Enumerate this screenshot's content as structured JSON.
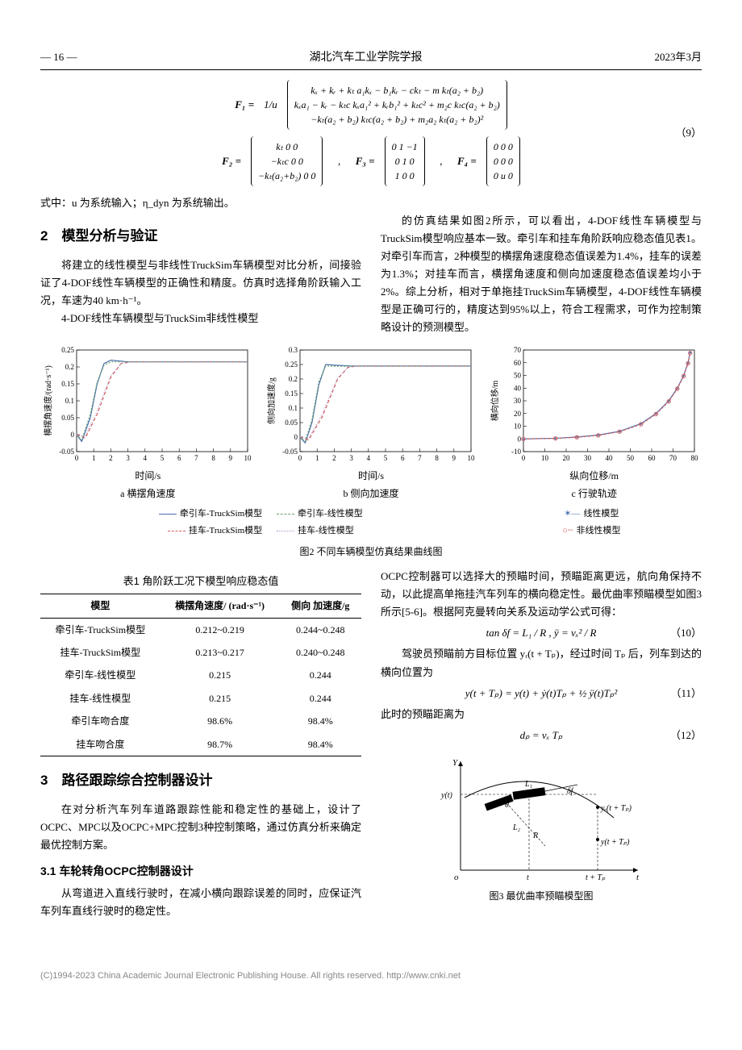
{
  "header": {
    "page_num": "— 16 —",
    "journal": "湖北汽车工业学院学报",
    "date": "2023年3月"
  },
  "eq9": {
    "label_F1": "F₁ =",
    "prefix": "1/u",
    "F1_rows": [
      "kₓ + kᵣ + kₜ          a₁kₓ − b₁kᵣ − ckₜ − m          kₜ(a₂ + b₂)",
      "kₓa₁ − kᵣ − kₜc    kₓa₁² + kᵣb₁² + kₜc² + m₂c    kₜc(a₂ + b₂)",
      "−kₜ(a₂ + b₂)        kₜc(a₂ + b₂) + m₂a₂           kₜ(a₂ + b₂)²"
    ],
    "F2_label": "F₂ =",
    "F2_rows": [
      "   kₜ             0   0",
      "  −kₜc           0   0",
      "−kₜ(a₂+b₂)   0   0"
    ],
    "F3_label": "F₃ =",
    "F3_rows": [
      "0   1  −1",
      "0   1   0",
      "1   0   0"
    ],
    "F4_label": "F₄ =",
    "F4_rows": [
      "0   0   0",
      "0   0   0",
      "0   u   0"
    ],
    "num": "（9）"
  },
  "eq_note": "式中：u 为系统输入；η_dyn 为系统输出。",
  "sec2": {
    "title": "2　模型分析与验证",
    "p1": "将建立的线性模型与非线性TruckSim车辆模型对比分析，间接验证了4-DOF线性车辆模型的正确性和精度。仿真时选择角阶跃输入工况，车速为40 km·h⁻¹。",
    "p2": "4-DOF线性车辆模型与TruckSim非线性模型",
    "p3": "的仿真结果如图2所示，可以看出，4-DOF线性车辆模型与TruckSim模型响应基本一致。牵引车和挂车角阶跃响应稳态值见表1。对牵引车而言，2种模型的横摆角速度稳态值误差为1.4%，挂车的误差为1.3%；对挂车而言，横摆角速度和侧向加速度稳态值误差均小于2%。综上分析，相对于单拖挂TruckSim车辆模型，4-DOF线性车辆模型是正确可行的，精度达到95%以上，符合工程需求，可作为控制策略设计的预测模型。"
  },
  "fig2": {
    "caption": "图2  不同车辆模型仿真结果曲线图",
    "chart_a": {
      "type": "line",
      "sub": "a  横摆角速度",
      "xlabel": "时间/s",
      "ylabel": "横摆角速度/(rad·s⁻¹)",
      "xlim": [
        0,
        10
      ],
      "xtick_step": 1,
      "ylim": [
        -0.05,
        0.25
      ],
      "ytick_step": 0.05,
      "series": [
        {
          "name": "牵引车-TruckSim模型",
          "color": "#4a6fb0",
          "dash": "none",
          "data": [
            [
              0,
              0
            ],
            [
              0.3,
              -0.02
            ],
            [
              0.8,
              0.05
            ],
            [
              1.2,
              0.15
            ],
            [
              1.6,
              0.21
            ],
            [
              2,
              0.22
            ],
            [
              3,
              0.215
            ],
            [
              10,
              0.215
            ]
          ]
        },
        {
          "name": "挂车-TruckSim模型",
          "color": "#d05d5d",
          "dash": "4,3",
          "data": [
            [
              0,
              0
            ],
            [
              0.5,
              -0.01
            ],
            [
              1.2,
              0.06
            ],
            [
              2,
              0.17
            ],
            [
              2.6,
              0.21
            ],
            [
              3.2,
              0.215
            ],
            [
              10,
              0.215
            ]
          ]
        },
        {
          "name": "牵引车-线性模型",
          "color": "#6aa36a",
          "dash": "2,2",
          "data": [
            [
              0,
              0
            ],
            [
              0.3,
              -0.015
            ],
            [
              0.8,
              0.06
            ],
            [
              1.2,
              0.155
            ],
            [
              1.6,
              0.205
            ],
            [
              2,
              0.215
            ],
            [
              3,
              0.215
            ],
            [
              10,
              0.215
            ]
          ]
        },
        {
          "name": "挂车-线性模型",
          "color": "#b08fc9",
          "dash": "1,2",
          "data": [
            [
              0,
              0
            ],
            [
              0.5,
              -0.005
            ],
            [
              1.2,
              0.07
            ],
            [
              2,
              0.175
            ],
            [
              2.6,
              0.21
            ],
            [
              3.2,
              0.215
            ],
            [
              10,
              0.215
            ]
          ]
        }
      ]
    },
    "chart_b": {
      "type": "line",
      "sub": "b  侧向加速度",
      "xlabel": "时间/s",
      "ylabel": "侧向加速度/g",
      "xlim": [
        0,
        10
      ],
      "xtick_step": 1,
      "ylim": [
        -0.05,
        0.3
      ],
      "ytick_step": 0.05,
      "series": [
        {
          "name": "牵引车-TruckSim模型",
          "color": "#4a6fb0",
          "dash": "none",
          "data": [
            [
              0,
              0
            ],
            [
              0.3,
              -0.02
            ],
            [
              0.7,
              0.05
            ],
            [
              1.1,
              0.18
            ],
            [
              1.5,
              0.25
            ],
            [
              2,
              0.248
            ],
            [
              3,
              0.245
            ],
            [
              10,
              0.245
            ]
          ]
        },
        {
          "name": "挂车-TruckSim模型",
          "color": "#d05d5d",
          "dash": "4,3",
          "data": [
            [
              0,
              0
            ],
            [
              0.5,
              -0.01
            ],
            [
              1.3,
              0.07
            ],
            [
              2.2,
              0.2
            ],
            [
              2.8,
              0.24
            ],
            [
              3.3,
              0.245
            ],
            [
              10,
              0.245
            ]
          ]
        },
        {
          "name": "牵引车-线性模型",
          "color": "#6aa36a",
          "dash": "2,2",
          "data": [
            [
              0,
              0
            ],
            [
              0.3,
              -0.015
            ],
            [
              0.7,
              0.06
            ],
            [
              1.1,
              0.19
            ],
            [
              1.5,
              0.245
            ],
            [
              2,
              0.244
            ],
            [
              10,
              0.244
            ]
          ]
        },
        {
          "name": "挂车-线性模型",
          "color": "#b08fc9",
          "dash": "1,2",
          "data": [
            [
              0,
              0
            ],
            [
              0.5,
              -0.005
            ],
            [
              1.3,
              0.08
            ],
            [
              2.2,
              0.205
            ],
            [
              2.8,
              0.24
            ],
            [
              3.3,
              0.244
            ],
            [
              10,
              0.244
            ]
          ]
        }
      ]
    },
    "chart_c": {
      "type": "line",
      "sub": "c  行驶轨迹",
      "xlabel": "纵向位移/m",
      "ylabel": "横向位移/m",
      "xlim": [
        0,
        80
      ],
      "xtick_step": 10,
      "ylim": [
        -10,
        70
      ],
      "ytick_step": 10,
      "series": [
        {
          "name": "线性模型",
          "color": "#4a6fb0",
          "dash": "none",
          "marker": "star",
          "data": [
            [
              0,
              0
            ],
            [
              15,
              0.5
            ],
            [
              25,
              1.5
            ],
            [
              35,
              3
            ],
            [
              45,
              6
            ],
            [
              55,
              12
            ],
            [
              62,
              20
            ],
            [
              68,
              30
            ],
            [
              72,
              40
            ],
            [
              75,
              50
            ],
            [
              77,
              60
            ],
            [
              78,
              68
            ]
          ]
        },
        {
          "name": "非线性模型",
          "color": "#d05d5d",
          "dash": "3,2",
          "marker": "circle",
          "data": [
            [
              0,
              0
            ],
            [
              15,
              0.4
            ],
            [
              25,
              1.3
            ],
            [
              35,
              2.8
            ],
            [
              45,
              5.7
            ],
            [
              55,
              11.5
            ],
            [
              62,
              19.5
            ],
            [
              68,
              29.5
            ],
            [
              72,
              39.5
            ],
            [
              75,
              49.5
            ],
            [
              77,
              59.5
            ],
            [
              78,
              67.5
            ]
          ]
        }
      ]
    },
    "legend_ab": [
      "牵引车-TruckSim模型",
      "牵引车-线性模型",
      "挂车-TruckSim模型",
      "挂车-线性模型"
    ],
    "legend_c": [
      "线性模型",
      "非线性模型"
    ],
    "legend_colors": {
      "牵引车-TruckSim模型": "#4a6fb0",
      "挂车-TruckSim模型": "#d05d5d",
      "牵引车-线性模型": "#6aa36a",
      "挂车-线性模型": "#b08fc9",
      "线性模型": "#4a6fb0",
      "非线性模型": "#d05d5d"
    },
    "grid_color": "#e0e0e0",
    "axis_color": "#000000"
  },
  "table1": {
    "caption": "表1  角阶跃工况下模型响应稳态值",
    "columns": [
      "模型",
      "横摆角速度/\n(rad·s⁻¹)",
      "侧向\n加速度/g"
    ],
    "rows": [
      [
        "牵引车-TruckSim模型",
        "0.212~0.219",
        "0.244~0.248"
      ],
      [
        "挂车-TruckSim模型",
        "0.213~0.217",
        "0.240~0.248"
      ],
      [
        "牵引车-线性模型",
        "0.215",
        "0.244"
      ],
      [
        "挂车-线性模型",
        "0.215",
        "0.244"
      ],
      [
        "牵引车吻合度",
        "98.6%",
        "98.4%"
      ],
      [
        "挂车吻合度",
        "98.7%",
        "98.4%"
      ]
    ]
  },
  "sec3": {
    "title": "3　路径跟踪综合控制器设计",
    "p1": "在对分析汽车列车道路跟踪性能和稳定性的基础上，设计了OCPC、MPC以及OCPC+MPC控制3种控制策略，通过仿真分析来确定最优控制方案。",
    "sub31": "3.1 车轮转角OCPC控制器设计",
    "p2": "从弯道进入直线行驶时，在减小横向跟踪误差的同时，应保证汽车列车直线行驶时的稳定性。",
    "p3": "OCPC控制器可以选择大的预瞄时间，预瞄距离更远，航向角保持不动，以此提高单拖挂汽车列车的横向稳定性。最优曲率预瞄模型如图3所示[5-6]。根据阿克曼转向关系及运动学公式可得：",
    "eq10": "tan δf = L₁ / R ,   ÿ = vₓ² / R",
    "eq10_num": "（10）",
    "p4": "驾驶员预瞄前方目标位置 yᵣ(t + Tₚ)，经过时间 Tₚ 后，列车到达的横向位置为",
    "eq11": "y(t + Tₚ) = y(t) + ẏ(t)Tₚ + ½ ÿ(t)Tₚ²",
    "eq11_num": "（11）",
    "p5": "此时的预瞄距离为",
    "eq12": "dₚ = vₓ Tₚ",
    "eq12_num": "（12）"
  },
  "fig3": {
    "caption": "图3  最优曲率预瞄模型图",
    "labels": {
      "Y": "Y",
      "o": "o",
      "t": "t",
      "L1": "L₁",
      "L2": "L₂",
      "R": "R",
      "delta": "δf",
      "theta": "θ",
      "yt": "y(t)",
      "yrtp": "yᵣ(t + Tₚ)",
      "ytp": "y(t + Tₚ)",
      "ttp": "t + Tₚ",
      "tx": "t"
    }
  },
  "footer": "(C)1994-2023 China Academic Journal Electronic Publishing House. All rights reserved.    http://www.cnki.net"
}
